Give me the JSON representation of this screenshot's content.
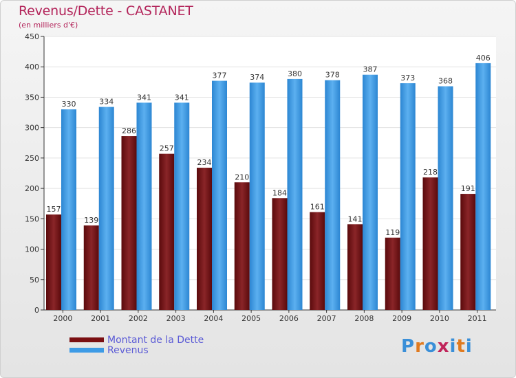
{
  "chart_data": {
    "type": "bar",
    "title": "Revenus/Dette - CASTANET",
    "subtitle": "(en milliers d'€)",
    "categories": [
      "2000",
      "2001",
      "2002",
      "2003",
      "2004",
      "2005",
      "2006",
      "2007",
      "2008",
      "2009",
      "2010",
      "2011"
    ],
    "series": [
      {
        "name": "Montant de la Dette",
        "color": "#7a0f12",
        "values": [
          157,
          139,
          286,
          257,
          234,
          210,
          184,
          161,
          141,
          119,
          218,
          191
        ]
      },
      {
        "name": "Revenus",
        "color": "#3d9be6",
        "values": [
          330,
          334,
          341,
          341,
          377,
          374,
          380,
          378,
          387,
          373,
          368,
          406
        ]
      }
    ],
    "ylim": [
      0,
      450
    ],
    "yticks": [
      0,
      50,
      100,
      150,
      200,
      250,
      300,
      350,
      400,
      450
    ],
    "grid": true,
    "legend": "bottom-left"
  },
  "logo": {
    "letters": [
      "P",
      "r",
      "o",
      "x",
      "i",
      "t",
      "i"
    ],
    "colors": [
      "#3a8fd8",
      "#e07a1f",
      "#3a8fd8",
      "#c0245a",
      "#3a8fd8",
      "#e07a1f",
      "#3a8fd8"
    ]
  }
}
